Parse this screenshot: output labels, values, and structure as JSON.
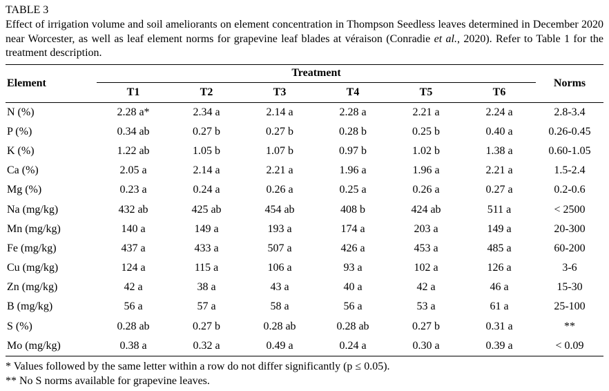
{
  "page": {
    "title": "TABLE 3",
    "caption": {
      "part1": "Effect of irrigation volume and soil ameliorants on element concentration in Thompson Seedless leaves determined in December 2020 near Worcester, as well as leaf element norms for grapevine leaf blades at véraison (Conradie ",
      "italic": "et al.",
      "part2": ", 2020). Refer to Table 1 for the treatment description."
    }
  },
  "table": {
    "header": {
      "element": "Element",
      "treatment": "Treatment",
      "norms": "Norms",
      "treatment_cols": [
        "T1",
        "T2",
        "T3",
        "T4",
        "T5",
        "T6"
      ]
    },
    "rows": [
      {
        "element": "N (%)",
        "values": [
          "2.28 a*",
          "2.34 a",
          "2.14 a",
          "2.28 a",
          "2.21 a",
          "2.24 a"
        ],
        "norms": "2.8-3.4"
      },
      {
        "element": "P (%)",
        "values": [
          "0.34 ab",
          "0.27 b",
          "0.27 b",
          "0.28 b",
          "0.25 b",
          "0.40 a"
        ],
        "norms": "0.26-0.45"
      },
      {
        "element": "K (%)",
        "values": [
          "1.22 ab",
          "1.05 b",
          "1.07 b",
          "0.97 b",
          "1.02 b",
          "1.38 a"
        ],
        "norms": "0.60-1.05"
      },
      {
        "element": "Ca (%)",
        "values": [
          "2.05 a",
          "2.14 a",
          "2.21 a",
          "1.96 a",
          "1.96 a",
          "2.21 a"
        ],
        "norms": "1.5-2.4"
      },
      {
        "element": "Mg (%)",
        "values": [
          "0.23 a",
          "0.24 a",
          "0.26 a",
          "0.25 a",
          "0.26 a",
          "0.27 a"
        ],
        "norms": "0.2-0.6"
      },
      {
        "element": "Na (mg/kg)",
        "values": [
          "432 ab",
          "425 ab",
          "454 ab",
          "408 b",
          "424 ab",
          "511 a"
        ],
        "norms": "< 2500"
      },
      {
        "element": "Mn (mg/kg)",
        "values": [
          "140 a",
          "149 a",
          "193 a",
          "174 a",
          "203 a",
          "149 a"
        ],
        "norms": "20-300"
      },
      {
        "element": "Fe (mg/kg)",
        "values": [
          "437 a",
          "433 a",
          "507 a",
          "426 a",
          "453 a",
          "485 a"
        ],
        "norms": "60-200"
      },
      {
        "element": "Cu (mg/kg)",
        "values": [
          "124 a",
          "115 a",
          "106 a",
          "93 a",
          "102 a",
          "126 a"
        ],
        "norms": "3-6"
      },
      {
        "element": "Zn (mg/kg)",
        "values": [
          "42 a",
          "38 a",
          "43 a",
          "40 a",
          "42 a",
          "46 a"
        ],
        "norms": "15-30"
      },
      {
        "element": "B (mg/kg)",
        "values": [
          "56 a",
          "57 a",
          "58 a",
          "56 a",
          "53 a",
          "61 a"
        ],
        "norms": "25-100"
      },
      {
        "element": "S (%)",
        "values": [
          "0.28 ab",
          "0.27 b",
          "0.28 ab",
          "0.28 ab",
          "0.27 b",
          "0.31 a"
        ],
        "norms": "**"
      },
      {
        "element": "Mo (mg/kg)",
        "values": [
          "0.38 a",
          "0.32 a",
          "0.49 a",
          "0.24 a",
          "0.30 a",
          "0.39 a"
        ],
        "norms": "< 0.09"
      }
    ]
  },
  "footnotes": [
    "* Values followed by the same letter within a row do not differ significantly (p ≤ 0.05).",
    "** No S norms available for grapevine leaves."
  ]
}
